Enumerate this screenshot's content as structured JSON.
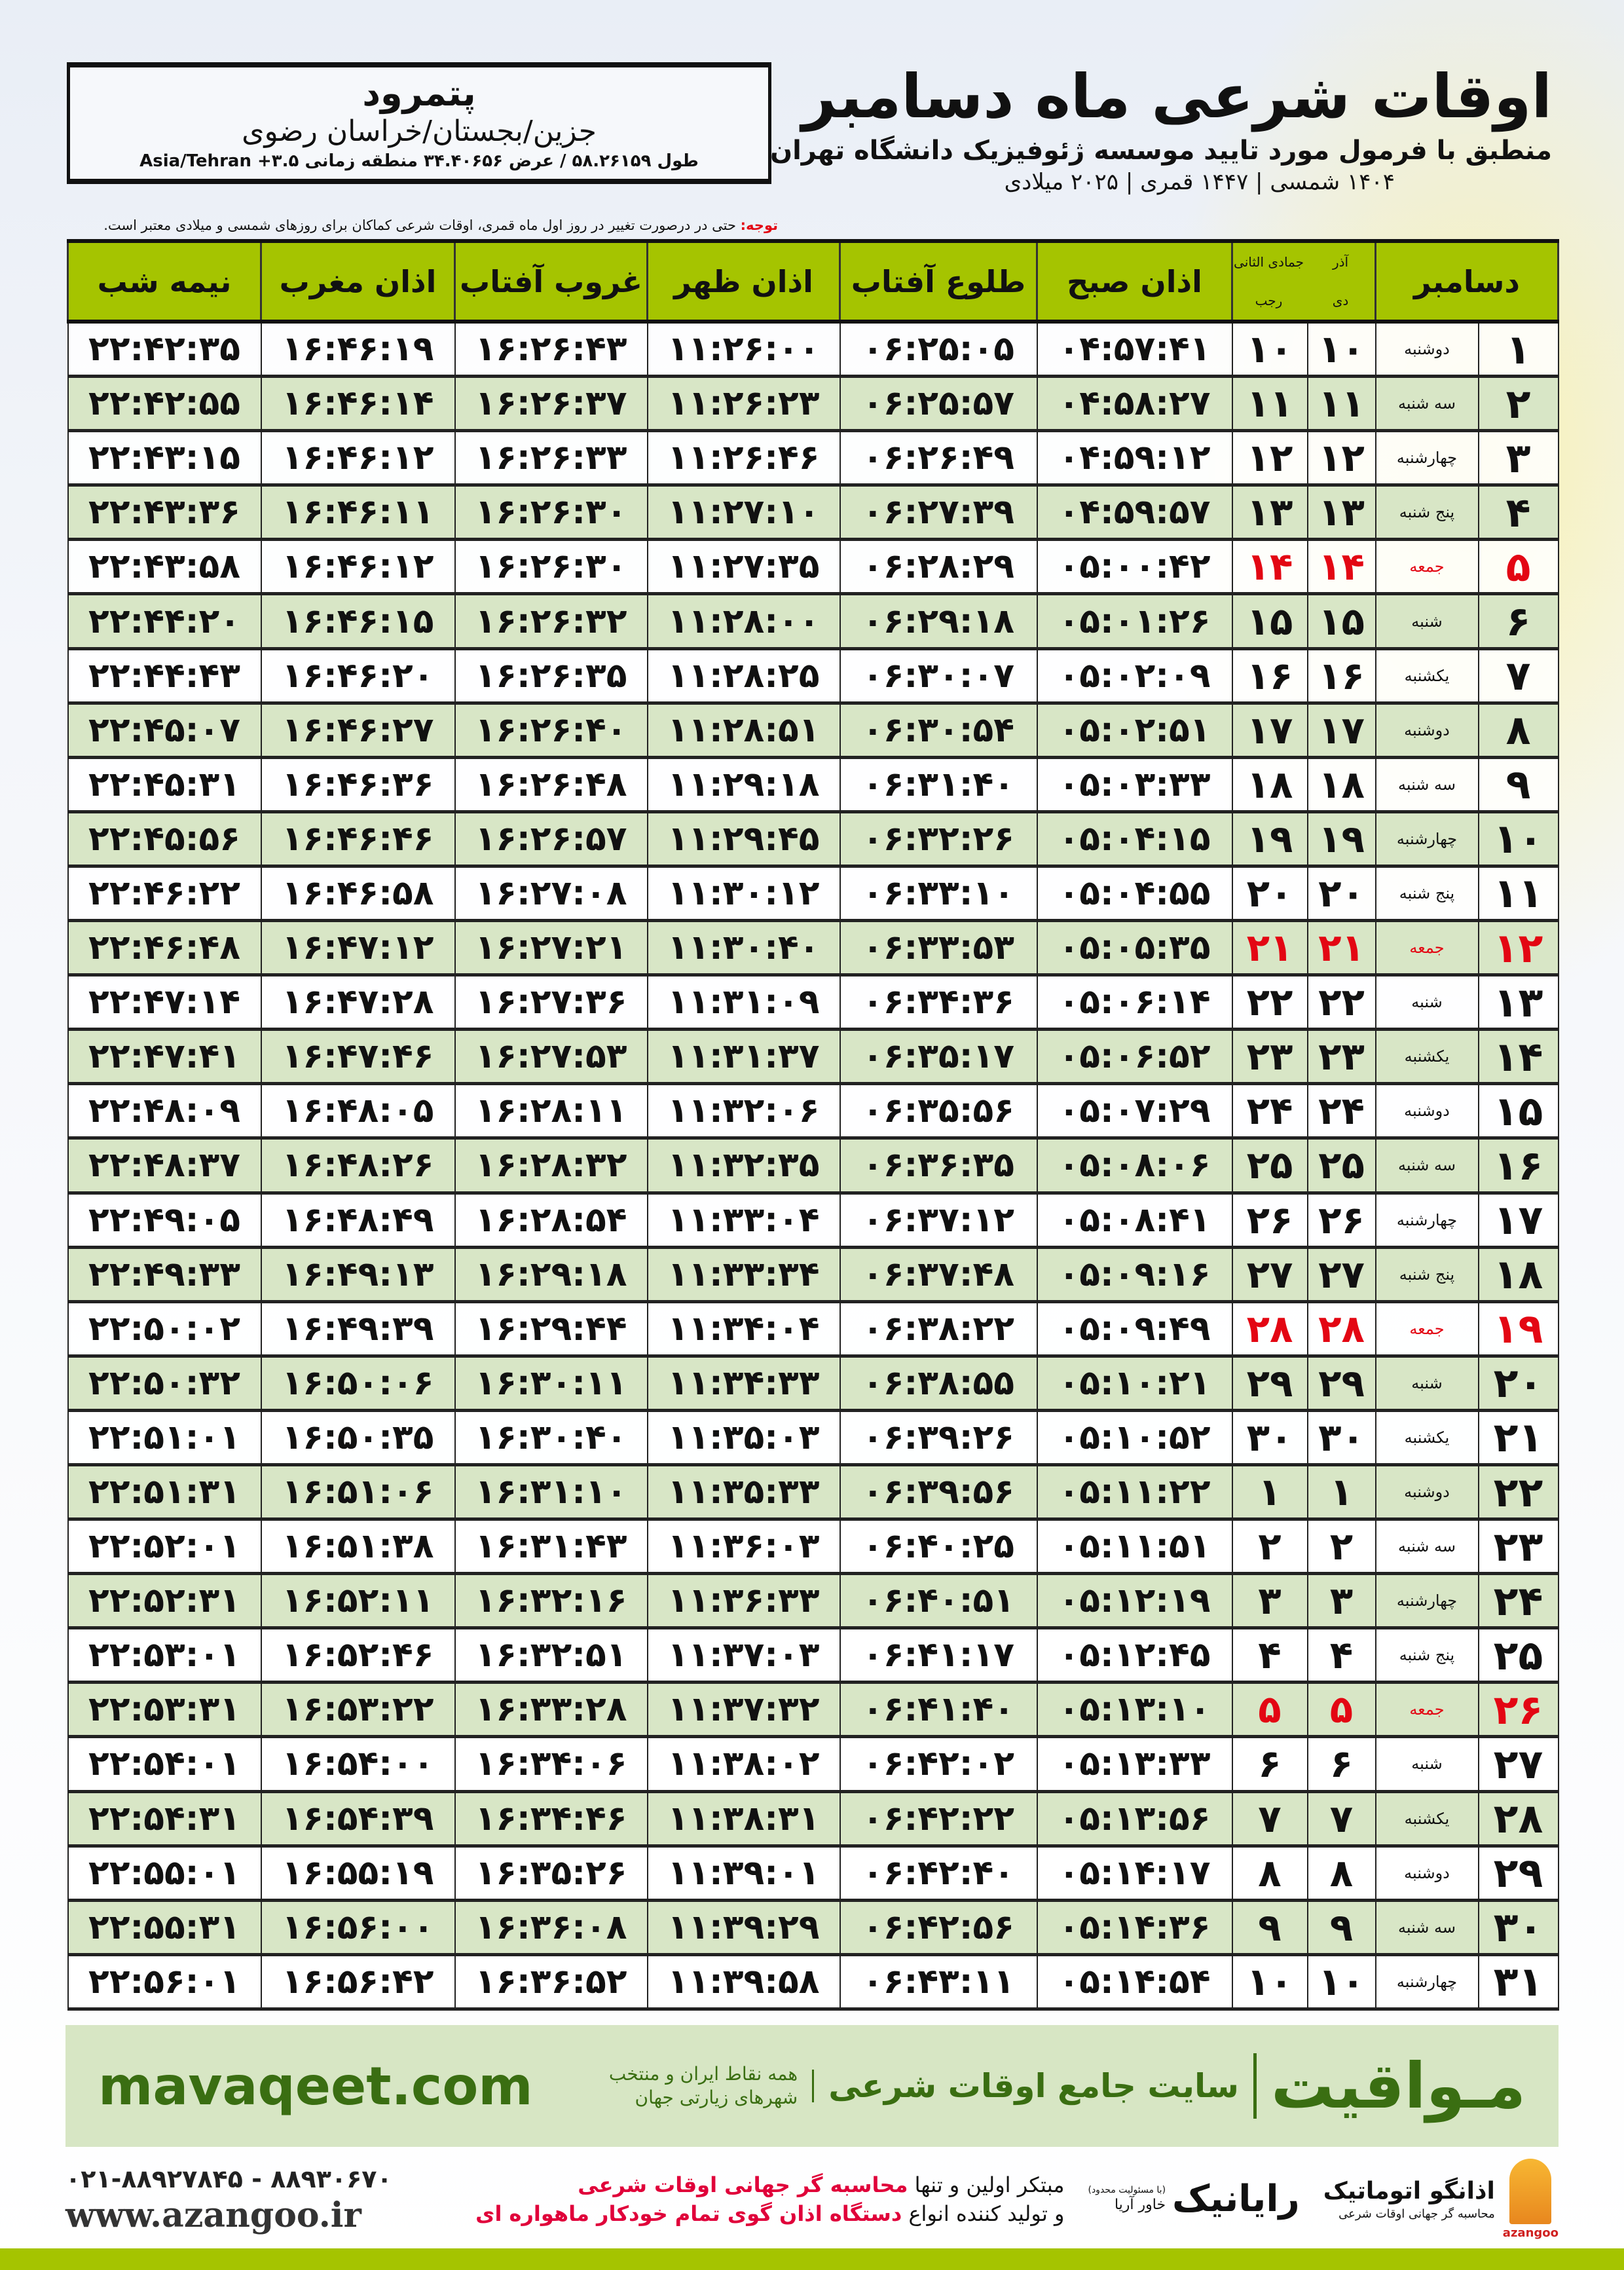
{
  "location": {
    "city": "پتمرود",
    "region": "جزین/بجستان/خراسان رضوی",
    "coords": "طول ۵۸.۲۶۱۵۹ / عرض ۳۴.۴۰۶۵۶ منطقه زمانی ۳.۵+ Asia/Tehran"
  },
  "header": {
    "title": "اوقات شرعی ماه دسامبر",
    "subtitle": "منطبق با فرمول مورد تایید موسسه ژئوفیزیک دانشگاه تهران",
    "dates": "۱۴۰۴ شمسی | ۱۴۴۷ قمری | ۲۰۲۵ میلادی"
  },
  "note": {
    "label": "توجه:",
    "text": " حتی در درصورت تغییر در روز اول ماه قمری، اوقات شرعی کماکان برای روزهای شمسی و میلادی معتبر است."
  },
  "table": {
    "columns": {
      "month": "دسامبر",
      "shamsi_prev": "آذر",
      "shamsi": "دی",
      "qamari_prev": "جمادی الثانی",
      "qamari": "رجب",
      "fajr": "اذان صبح",
      "sunrise": "طلوع آفتاب",
      "dhuhr": "اذان ظهر",
      "sunset": "غروب آفتاب",
      "maghrib": "اذان مغرب",
      "midnight": "نیمه شب"
    },
    "holiday_color": "#e30613",
    "header_color": "#a5c400",
    "row_alt_color": "#d8e6c6",
    "rows": [
      [
        "۱",
        "دوشنبه",
        "۱۰",
        "۱۰",
        "۰۴:۵۷:۴۱",
        "۰۶:۲۵:۰۵",
        "۱۱:۲۶:۰۰",
        "۱۶:۲۶:۴۳",
        "۱۶:۴۶:۱۹",
        "۲۲:۴۲:۳۵",
        false
      ],
      [
        "۲",
        "سه شنبه",
        "۱۱",
        "۱۱",
        "۰۴:۵۸:۲۷",
        "۰۶:۲۵:۵۷",
        "۱۱:۲۶:۲۳",
        "۱۶:۲۶:۳۷",
        "۱۶:۴۶:۱۴",
        "۲۲:۴۲:۵۵",
        false
      ],
      [
        "۳",
        "چهارشنبه",
        "۱۲",
        "۱۲",
        "۰۴:۵۹:۱۲",
        "۰۶:۲۶:۴۹",
        "۱۱:۲۶:۴۶",
        "۱۶:۲۶:۳۳",
        "۱۶:۴۶:۱۲",
        "۲۲:۴۳:۱۵",
        false
      ],
      [
        "۴",
        "پنج شنبه",
        "۱۳",
        "۱۳",
        "۰۴:۵۹:۵۷",
        "۰۶:۲۷:۳۹",
        "۱۱:۲۷:۱۰",
        "۱۶:۲۶:۳۰",
        "۱۶:۴۶:۱۱",
        "۲۲:۴۳:۳۶",
        false
      ],
      [
        "۵",
        "جمعه",
        "۱۴",
        "۱۴",
        "۰۵:۰۰:۴۲",
        "۰۶:۲۸:۲۹",
        "۱۱:۲۷:۳۵",
        "۱۶:۲۶:۳۰",
        "۱۶:۴۶:۱۲",
        "۲۲:۴۳:۵۸",
        true
      ],
      [
        "۶",
        "شنبه",
        "۱۵",
        "۱۵",
        "۰۵:۰۱:۲۶",
        "۰۶:۲۹:۱۸",
        "۱۱:۲۸:۰۰",
        "۱۶:۲۶:۳۲",
        "۱۶:۴۶:۱۵",
        "۲۲:۴۴:۲۰",
        false
      ],
      [
        "۷",
        "یکشنبه",
        "۱۶",
        "۱۶",
        "۰۵:۰۲:۰۹",
        "۰۶:۳۰:۰۷",
        "۱۱:۲۸:۲۵",
        "۱۶:۲۶:۳۵",
        "۱۶:۴۶:۲۰",
        "۲۲:۴۴:۴۳",
        false
      ],
      [
        "۸",
        "دوشنبه",
        "۱۷",
        "۱۷",
        "۰۵:۰۲:۵۱",
        "۰۶:۳۰:۵۴",
        "۱۱:۲۸:۵۱",
        "۱۶:۲۶:۴۰",
        "۱۶:۴۶:۲۷",
        "۲۲:۴۵:۰۷",
        false
      ],
      [
        "۹",
        "سه شنبه",
        "۱۸",
        "۱۸",
        "۰۵:۰۳:۳۳",
        "۰۶:۳۱:۴۰",
        "۱۱:۲۹:۱۸",
        "۱۶:۲۶:۴۸",
        "۱۶:۴۶:۳۶",
        "۲۲:۴۵:۳۱",
        false
      ],
      [
        "۱۰",
        "چهارشنبه",
        "۱۹",
        "۱۹",
        "۰۵:۰۴:۱۵",
        "۰۶:۳۲:۲۶",
        "۱۱:۲۹:۴۵",
        "۱۶:۲۶:۵۷",
        "۱۶:۴۶:۴۶",
        "۲۲:۴۵:۵۶",
        false
      ],
      [
        "۱۱",
        "پنج شنبه",
        "۲۰",
        "۲۰",
        "۰۵:۰۴:۵۵",
        "۰۶:۳۳:۱۰",
        "۱۱:۳۰:۱۲",
        "۱۶:۲۷:۰۸",
        "۱۶:۴۶:۵۸",
        "۲۲:۴۶:۲۲",
        false
      ],
      [
        "۱۲",
        "جمعه",
        "۲۱",
        "۲۱",
        "۰۵:۰۵:۳۵",
        "۰۶:۳۳:۵۳",
        "۱۱:۳۰:۴۰",
        "۱۶:۲۷:۲۱",
        "۱۶:۴۷:۱۲",
        "۲۲:۴۶:۴۸",
        true
      ],
      [
        "۱۳",
        "شنبه",
        "۲۲",
        "۲۲",
        "۰۵:۰۶:۱۴",
        "۰۶:۳۴:۳۶",
        "۱۱:۳۱:۰۹",
        "۱۶:۲۷:۳۶",
        "۱۶:۴۷:۲۸",
        "۲۲:۴۷:۱۴",
        false
      ],
      [
        "۱۴",
        "یکشنبه",
        "۲۳",
        "۲۳",
        "۰۵:۰۶:۵۲",
        "۰۶:۳۵:۱۷",
        "۱۱:۳۱:۳۷",
        "۱۶:۲۷:۵۳",
        "۱۶:۴۷:۴۶",
        "۲۲:۴۷:۴۱",
        false
      ],
      [
        "۱۵",
        "دوشنبه",
        "۲۴",
        "۲۴",
        "۰۵:۰۷:۲۹",
        "۰۶:۳۵:۵۶",
        "۱۱:۳۲:۰۶",
        "۱۶:۲۸:۱۱",
        "۱۶:۴۸:۰۵",
        "۲۲:۴۸:۰۹",
        false
      ],
      [
        "۱۶",
        "سه شنبه",
        "۲۵",
        "۲۵",
        "۰۵:۰۸:۰۶",
        "۰۶:۳۶:۳۵",
        "۱۱:۳۲:۳۵",
        "۱۶:۲۸:۳۲",
        "۱۶:۴۸:۲۶",
        "۲۲:۴۸:۳۷",
        false
      ],
      [
        "۱۷",
        "چهارشنبه",
        "۲۶",
        "۲۶",
        "۰۵:۰۸:۴۱",
        "۰۶:۳۷:۱۲",
        "۱۱:۳۳:۰۴",
        "۱۶:۲۸:۵۴",
        "۱۶:۴۸:۴۹",
        "۲۲:۴۹:۰۵",
        false
      ],
      [
        "۱۸",
        "پنج شنبه",
        "۲۷",
        "۲۷",
        "۰۵:۰۹:۱۶",
        "۰۶:۳۷:۴۸",
        "۱۱:۳۳:۳۴",
        "۱۶:۲۹:۱۸",
        "۱۶:۴۹:۱۳",
        "۲۲:۴۹:۳۳",
        false
      ],
      [
        "۱۹",
        "جمعه",
        "۲۸",
        "۲۸",
        "۰۵:۰۹:۴۹",
        "۰۶:۳۸:۲۲",
        "۱۱:۳۴:۰۴",
        "۱۶:۲۹:۴۴",
        "۱۶:۴۹:۳۹",
        "۲۲:۵۰:۰۲",
        true
      ],
      [
        "۲۰",
        "شنبه",
        "۲۹",
        "۲۹",
        "۰۵:۱۰:۲۱",
        "۰۶:۳۸:۵۵",
        "۱۱:۳۴:۳۳",
        "۱۶:۳۰:۱۱",
        "۱۶:۵۰:۰۶",
        "۲۲:۵۰:۳۲",
        false
      ],
      [
        "۲۱",
        "یکشنبه",
        "۳۰",
        "۳۰",
        "۰۵:۱۰:۵۲",
        "۰۶:۳۹:۲۶",
        "۱۱:۳۵:۰۳",
        "۱۶:۳۰:۴۰",
        "۱۶:۵۰:۳۵",
        "۲۲:۵۱:۰۱",
        false
      ],
      [
        "۲۲",
        "دوشنبه",
        "۱",
        "۱",
        "۰۵:۱۱:۲۲",
        "۰۶:۳۹:۵۶",
        "۱۱:۳۵:۳۳",
        "۱۶:۳۱:۱۰",
        "۱۶:۵۱:۰۶",
        "۲۲:۵۱:۳۱",
        false
      ],
      [
        "۲۳",
        "سه شنبه",
        "۲",
        "۲",
        "۰۵:۱۱:۵۱",
        "۰۶:۴۰:۲۵",
        "۱۱:۳۶:۰۳",
        "۱۶:۳۱:۴۳",
        "۱۶:۵۱:۳۸",
        "۲۲:۵۲:۰۱",
        false
      ],
      [
        "۲۴",
        "چهارشنبه",
        "۳",
        "۳",
        "۰۵:۱۲:۱۹",
        "۰۶:۴۰:۵۱",
        "۱۱:۳۶:۳۳",
        "۱۶:۳۲:۱۶",
        "۱۶:۵۲:۱۱",
        "۲۲:۵۲:۳۱",
        false
      ],
      [
        "۲۵",
        "پنج شنبه",
        "۴",
        "۴",
        "۰۵:۱۲:۴۵",
        "۰۶:۴۱:۱۷",
        "۱۱:۳۷:۰۳",
        "۱۶:۳۲:۵۱",
        "۱۶:۵۲:۴۶",
        "۲۲:۵۳:۰۱",
        false
      ],
      [
        "۲۶",
        "جمعه",
        "۵",
        "۵",
        "۰۵:۱۳:۱۰",
        "۰۶:۴۱:۴۰",
        "۱۱:۳۷:۳۲",
        "۱۶:۳۳:۲۸",
        "۱۶:۵۳:۲۲",
        "۲۲:۵۳:۳۱",
        true
      ],
      [
        "۲۷",
        "شنبه",
        "۶",
        "۶",
        "۰۵:۱۳:۳۳",
        "۰۶:۴۲:۰۲",
        "۱۱:۳۸:۰۲",
        "۱۶:۳۴:۰۶",
        "۱۶:۵۴:۰۰",
        "۲۲:۵۴:۰۱",
        false
      ],
      [
        "۲۸",
        "یکشنبه",
        "۷",
        "۷",
        "۰۵:۱۳:۵۶",
        "۰۶:۴۲:۲۲",
        "۱۱:۳۸:۳۱",
        "۱۶:۳۴:۴۶",
        "۱۶:۵۴:۳۹",
        "۲۲:۵۴:۳۱",
        false
      ],
      [
        "۲۹",
        "دوشنبه",
        "۸",
        "۸",
        "۰۵:۱۴:۱۷",
        "۰۶:۴۲:۴۰",
        "۱۱:۳۹:۰۱",
        "۱۶:۳۵:۲۶",
        "۱۶:۵۵:۱۹",
        "۲۲:۵۵:۰۱",
        false
      ],
      [
        "۳۰",
        "سه شنبه",
        "۹",
        "۹",
        "۰۵:۱۴:۳۶",
        "۰۶:۴۲:۵۶",
        "۱۱:۳۹:۲۹",
        "۱۶:۳۶:۰۸",
        "۱۶:۵۶:۰۰",
        "۲۲:۵۵:۳۱",
        false
      ],
      [
        "۳۱",
        "چهارشنبه",
        "۱۰",
        "۱۰",
        "۰۵:۱۴:۵۴",
        "۰۶:۴۳:۱۱",
        "۱۱:۳۹:۵۸",
        "۱۶:۳۶:۵۲",
        "۱۶:۵۶:۴۲",
        "۲۲:۵۶:۰۱",
        false
      ]
    ]
  },
  "footer_band": {
    "logo": "مـواقیت",
    "tagline": "سایت جامع اوقات شرعی",
    "tagline2": "همه نقاط ایران و منتخب شهرهای زیارتی جهان",
    "site": "mavaqeet.com",
    "color": "#3a6e12"
  },
  "footer": {
    "phones": "۰۲۱-۸۸۹۲۷۸۴۵ - ۸۸۹۳۰۶۷۰",
    "web": "www.azangoo.ir",
    "line1_plain": "مبتکر اولین و تنها ",
    "line1_red": "محاسبه گر جهانی اوقات شرعی",
    "line2_plain": "و تولید کننده انواع ",
    "line2_red": "دستگاه اذان گوی تمام خودکار ماهواره ای",
    "rayanik": "رایانیک",
    "rayanik_sub": "خاور آریا",
    "rayanik_note": "(با مسئولیت محدود)",
    "azangoo_name": "اذانگو اتوماتیک",
    "azangoo_sub": "محاسبه گر جهانی اوقات شرعی",
    "azangoo_latin": "azangoo"
  }
}
